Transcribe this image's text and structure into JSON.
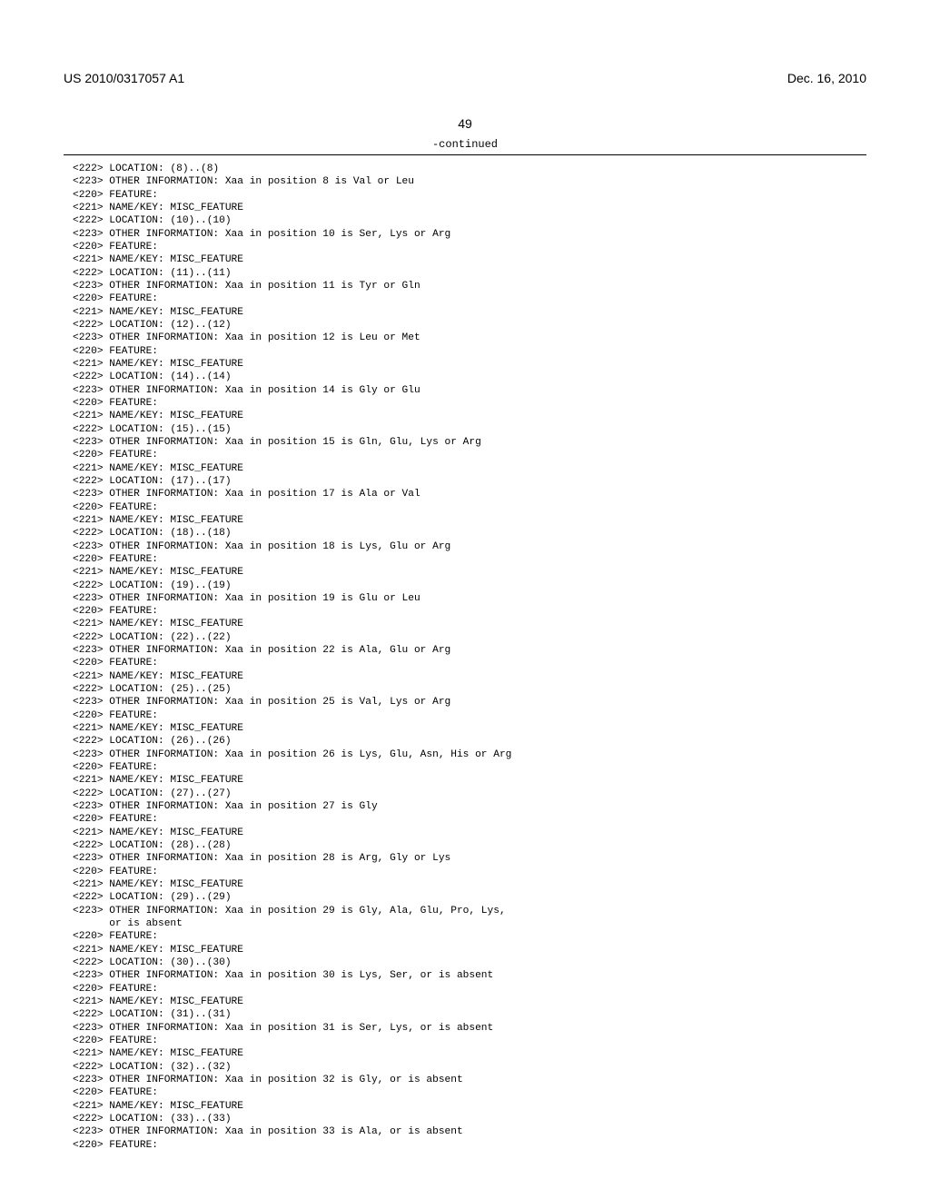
{
  "header": {
    "publication_number": "US 2010/0317057 A1",
    "publication_date": "Dec. 16, 2010"
  },
  "page_number": "49",
  "continued_label": "-continued",
  "lines": [
    "<222> LOCATION: (8)..(8)",
    "<223> OTHER INFORMATION: Xaa in position 8 is Val or Leu",
    "<220> FEATURE:",
    "<221> NAME/KEY: MISC_FEATURE",
    "<222> LOCATION: (10)..(10)",
    "<223> OTHER INFORMATION: Xaa in position 10 is Ser, Lys or Arg",
    "<220> FEATURE:",
    "<221> NAME/KEY: MISC_FEATURE",
    "<222> LOCATION: (11)..(11)",
    "<223> OTHER INFORMATION: Xaa in position 11 is Tyr or Gln",
    "<220> FEATURE:",
    "<221> NAME/KEY: MISC_FEATURE",
    "<222> LOCATION: (12)..(12)",
    "<223> OTHER INFORMATION: Xaa in position 12 is Leu or Met",
    "<220> FEATURE:",
    "<221> NAME/KEY: MISC_FEATURE",
    "<222> LOCATION: (14)..(14)",
    "<223> OTHER INFORMATION: Xaa in position 14 is Gly or Glu",
    "<220> FEATURE:",
    "<221> NAME/KEY: MISC_FEATURE",
    "<222> LOCATION: (15)..(15)",
    "<223> OTHER INFORMATION: Xaa in position 15 is Gln, Glu, Lys or Arg",
    "<220> FEATURE:",
    "<221> NAME/KEY: MISC_FEATURE",
    "<222> LOCATION: (17)..(17)",
    "<223> OTHER INFORMATION: Xaa in position 17 is Ala or Val",
    "<220> FEATURE:",
    "<221> NAME/KEY: MISC_FEATURE",
    "<222> LOCATION: (18)..(18)",
    "<223> OTHER INFORMATION: Xaa in position 18 is Lys, Glu or Arg",
    "<220> FEATURE:",
    "<221> NAME/KEY: MISC_FEATURE",
    "<222> LOCATION: (19)..(19)",
    "<223> OTHER INFORMATION: Xaa in position 19 is Glu or Leu",
    "<220> FEATURE:",
    "<221> NAME/KEY: MISC_FEATURE",
    "<222> LOCATION: (22)..(22)",
    "<223> OTHER INFORMATION: Xaa in position 22 is Ala, Glu or Arg",
    "<220> FEATURE:",
    "<221> NAME/KEY: MISC_FEATURE",
    "<222> LOCATION: (25)..(25)",
    "<223> OTHER INFORMATION: Xaa in position 25 is Val, Lys or Arg",
    "<220> FEATURE:",
    "<221> NAME/KEY: MISC_FEATURE",
    "<222> LOCATION: (26)..(26)",
    "<223> OTHER INFORMATION: Xaa in position 26 is Lys, Glu, Asn, His or Arg",
    "<220> FEATURE:",
    "<221> NAME/KEY: MISC_FEATURE",
    "<222> LOCATION: (27)..(27)",
    "<223> OTHER INFORMATION: Xaa in position 27 is Gly",
    "<220> FEATURE:",
    "<221> NAME/KEY: MISC_FEATURE",
    "<222> LOCATION: (28)..(28)",
    "<223> OTHER INFORMATION: Xaa in position 28 is Arg, Gly or Lys",
    "<220> FEATURE:",
    "<221> NAME/KEY: MISC_FEATURE",
    "<222> LOCATION: (29)..(29)",
    "<223> OTHER INFORMATION: Xaa in position 29 is Gly, Ala, Glu, Pro, Lys,",
    "      or is absent",
    "<220> FEATURE:",
    "<221> NAME/KEY: MISC_FEATURE",
    "<222> LOCATION: (30)..(30)",
    "<223> OTHER INFORMATION: Xaa in position 30 is Lys, Ser, or is absent",
    "<220> FEATURE:",
    "<221> NAME/KEY: MISC_FEATURE",
    "<222> LOCATION: (31)..(31)",
    "<223> OTHER INFORMATION: Xaa in position 31 is Ser, Lys, or is absent",
    "<220> FEATURE:",
    "<221> NAME/KEY: MISC_FEATURE",
    "<222> LOCATION: (32)..(32)",
    "<223> OTHER INFORMATION: Xaa in position 32 is Gly, or is absent",
    "<220> FEATURE:",
    "<221> NAME/KEY: MISC_FEATURE",
    "<222> LOCATION: (33)..(33)",
    "<223> OTHER INFORMATION: Xaa in position 33 is Ala, or is absent",
    "<220> FEATURE:"
  ]
}
